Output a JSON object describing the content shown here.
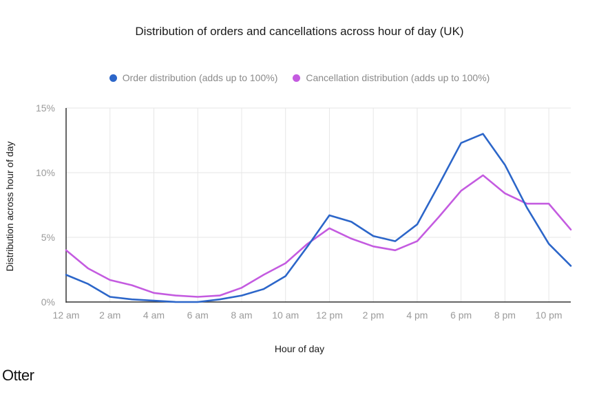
{
  "chart_data": {
    "type": "line",
    "title": "Distribution of orders and cancellations across hour of day (UK)",
    "xlabel": "Hour of day",
    "ylabel": "Distribution across hour of day",
    "x": [
      "12 am",
      "1 am",
      "2 am",
      "3 am",
      "4 am",
      "5 am",
      "6 am",
      "7 am",
      "8 am",
      "9 am",
      "10 am",
      "11 am",
      "12 pm",
      "1 pm",
      "2 pm",
      "3 pm",
      "4 pm",
      "5 pm",
      "6 pm",
      "7 pm",
      "8 pm",
      "9 pm",
      "10 pm",
      "11 pm"
    ],
    "x_tick_labels": [
      "12 am",
      "2 am",
      "4 am",
      "6 am",
      "8 am",
      "10 am",
      "12 pm",
      "2 pm",
      "4 pm",
      "6 pm",
      "8 pm",
      "10 pm"
    ],
    "y_tick_labels": [
      "0%",
      "5%",
      "10%",
      "15%"
    ],
    "ylim": [
      0,
      15
    ],
    "grid": true,
    "legend_position": "top-center",
    "series": [
      {
        "name": "Order distribution (adds up to 100%)",
        "color": "#2c66c9",
        "values": [
          2.1,
          1.4,
          0.4,
          0.2,
          0.1,
          0.0,
          0.0,
          0.2,
          0.5,
          1.0,
          2.0,
          4.3,
          6.7,
          6.2,
          5.1,
          4.7,
          6.0,
          9.1,
          12.3,
          13.0,
          10.6,
          7.3,
          4.5,
          2.8
        ]
      },
      {
        "name": "Cancellation distribution (adds up to 100%)",
        "color": "#c45be0",
        "values": [
          4.0,
          2.6,
          1.7,
          1.3,
          0.7,
          0.5,
          0.4,
          0.5,
          1.1,
          2.1,
          3.0,
          4.5,
          5.7,
          4.9,
          4.3,
          4.0,
          4.7,
          6.6,
          8.6,
          9.8,
          8.4,
          7.6,
          7.6,
          5.6
        ]
      }
    ]
  },
  "footer": {
    "brand": "Otter"
  }
}
